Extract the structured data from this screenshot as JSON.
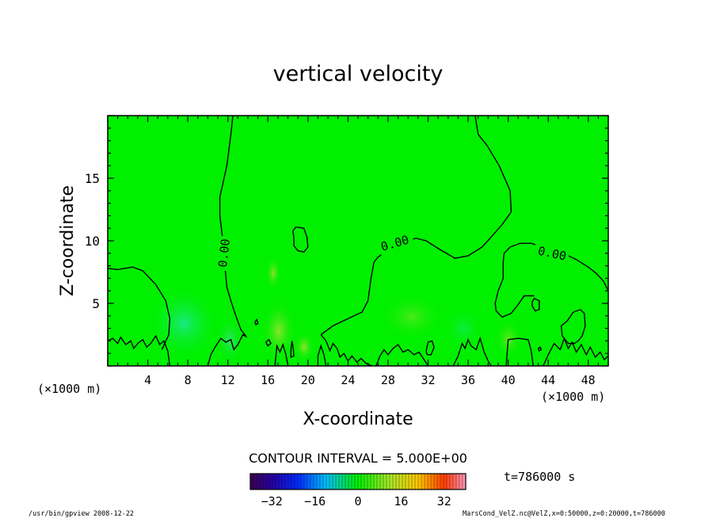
{
  "chart_data": {
    "type": "heatmap",
    "title": "vertical velocity",
    "xlabel": "X-coordinate",
    "ylabel": "Z-coordinate",
    "x_unit": "(×1000 m)",
    "xlim": [
      0,
      50
    ],
    "ylim": [
      0,
      20
    ],
    "x_ticks": [
      "4",
      "8",
      "12",
      "16",
      "20",
      "24",
      "28",
      "32",
      "36",
      "40",
      "44",
      "48"
    ],
    "y_ticks": [
      "5",
      "10",
      "15"
    ],
    "contour_interval_text": "CONTOUR INTERVAL = 5.000E+00",
    "contour_labels": [
      "0.00",
      "0.00",
      "0.00"
    ],
    "time_label": "t=786000 s",
    "colorbar": {
      "range": [
        -40,
        40
      ],
      "ticks": [
        "−32",
        "−16",
        "0",
        "16",
        "32"
      ]
    },
    "field_color": "#00f000",
    "contours": [
      {
        "points": [
          [
            0,
            7.8
          ],
          [
            1,
            7.7
          ],
          [
            2.5,
            7.9
          ],
          [
            3.5,
            7.6
          ],
          [
            4.8,
            6.5
          ],
          [
            5.8,
            5.2
          ],
          [
            6.2,
            3.8
          ],
          [
            6.1,
            2.5
          ],
          [
            5.7,
            1.8
          ],
          [
            5.4,
            1.3
          ]
        ]
      },
      {
        "points": [
          [
            12.5,
            20
          ],
          [
            12.3,
            18.5
          ],
          [
            11.9,
            16
          ],
          [
            11.2,
            13.5
          ],
          [
            11.2,
            12
          ],
          [
            11.5,
            10
          ],
          [
            11.7,
            8
          ],
          [
            11.9,
            6.3
          ],
          [
            12.3,
            5.2
          ],
          [
            12.8,
            4.0
          ],
          [
            13.3,
            2.9
          ],
          [
            13.8,
            2.4
          ]
        ]
      },
      {
        "points": [
          [
            18.6,
            10.2
          ],
          [
            18.5,
            10.8
          ],
          [
            18.8,
            11.1
          ],
          [
            19.6,
            11.0
          ],
          [
            19.9,
            10.3
          ],
          [
            20.0,
            9.5
          ],
          [
            19.6,
            9.1
          ],
          [
            19.0,
            9.2
          ],
          [
            18.6,
            9.6
          ],
          [
            18.6,
            10.2
          ]
        ]
      },
      {
        "points": [
          [
            21.3,
            2.5
          ],
          [
            22.5,
            3.2
          ],
          [
            24.6,
            4.0
          ],
          [
            25.4,
            4.3
          ],
          [
            26.0,
            5.2
          ],
          [
            26.3,
            7.0
          ],
          [
            26.6,
            8.3
          ],
          [
            27.0,
            8.7
          ],
          [
            28.5,
            9.5
          ],
          [
            29.8,
            10.0
          ],
          [
            30.8,
            10.2
          ],
          [
            31.8,
            10.0
          ],
          [
            33.2,
            9.3
          ],
          [
            34.7,
            8.6
          ],
          [
            36.0,
            8.8
          ],
          [
            37.4,
            9.5
          ],
          [
            38.3,
            10.3
          ],
          [
            39.4,
            11.3
          ],
          [
            40.3,
            12.3
          ],
          [
            40.2,
            14
          ],
          [
            39.1,
            16
          ],
          [
            37.9,
            17.6
          ],
          [
            37.0,
            18.5
          ],
          [
            36.7,
            20
          ]
        ]
      },
      {
        "points": [
          [
            39.5,
            8.3
          ],
          [
            39.6,
            9.0
          ],
          [
            40.2,
            9.5
          ],
          [
            41.2,
            9.8
          ],
          [
            42.3,
            9.8
          ],
          [
            43.8,
            9.4
          ],
          [
            45.5,
            9.0
          ],
          [
            46.8,
            8.5
          ],
          [
            48.0,
            7.9
          ],
          [
            48.8,
            7.4
          ],
          [
            49.5,
            6.8
          ],
          [
            50,
            6.0
          ]
        ]
      },
      {
        "points": [
          [
            39.5,
            8.3
          ],
          [
            39.5,
            7.0
          ],
          [
            39.0,
            6.0
          ],
          [
            38.7,
            5.0
          ],
          [
            38.8,
            4.4
          ],
          [
            39.4,
            3.9
          ],
          [
            40.3,
            4.2
          ],
          [
            41.0,
            4.9
          ],
          [
            41.6,
            5.6
          ],
          [
            42.6,
            5.6
          ]
        ]
      },
      {
        "points": [
          [
            42.4,
            5.1
          ],
          [
            42.6,
            5.4
          ],
          [
            43.1,
            5.2
          ],
          [
            43.1,
            4.5
          ],
          [
            42.7,
            4.4
          ],
          [
            42.4,
            4.8
          ],
          [
            42.4,
            5.1
          ]
        ]
      },
      {
        "points": [
          [
            46.5,
            4.3
          ],
          [
            47.2,
            4.5
          ],
          [
            47.6,
            4.2
          ],
          [
            47.7,
            3.2
          ],
          [
            47.4,
            2.4
          ],
          [
            47.0,
            2.0
          ],
          [
            46.6,
            1.8
          ],
          [
            46.0,
            1.8
          ],
          [
            45.4,
            2.4
          ],
          [
            45.3,
            3.2
          ],
          [
            45.9,
            3.6
          ],
          [
            46.5,
            4.3
          ]
        ]
      },
      {
        "points": [
          [
            18.3,
            1.3
          ],
          [
            18.4,
            2.0
          ],
          [
            18.5,
            1.6
          ],
          [
            18.6,
            0.8
          ],
          [
            18.3,
            0.7
          ],
          [
            18.3,
            1.3
          ]
        ]
      },
      {
        "points": [
          [
            15.8,
            1.9
          ],
          [
            16.1,
            2.1
          ],
          [
            16.3,
            1.8
          ],
          [
            16.0,
            1.6
          ],
          [
            15.8,
            1.9
          ]
        ]
      },
      {
        "points": [
          [
            14.7,
            3.5
          ],
          [
            14.9,
            3.7
          ],
          [
            15.0,
            3.4
          ],
          [
            14.8,
            3.3
          ],
          [
            14.7,
            3.5
          ]
        ]
      },
      {
        "points": [
          [
            43.0,
            1.4
          ],
          [
            43.2,
            1.5
          ],
          [
            43.3,
            1.3
          ],
          [
            43.1,
            1.2
          ],
          [
            43.0,
            1.4
          ]
        ]
      },
      {
        "points": [
          [
            0,
            2.0
          ],
          [
            0.5,
            2.2
          ],
          [
            1.0,
            1.8
          ],
          [
            1.3,
            2.3
          ],
          [
            1.8,
            1.7
          ],
          [
            2.3,
            2.0
          ],
          [
            2.6,
            1.4
          ],
          [
            3.0,
            1.8
          ],
          [
            3.5,
            2.1
          ],
          [
            3.9,
            1.5
          ],
          [
            4.3,
            1.8
          ],
          [
            4.8,
            2.4
          ],
          [
            5.2,
            1.7
          ],
          [
            5.6,
            2.0
          ],
          [
            6.0,
            1.2
          ],
          [
            6.2,
            0
          ]
        ]
      },
      {
        "points": [
          [
            10.0,
            0
          ],
          [
            10.3,
            0.9
          ],
          [
            10.8,
            1.6
          ],
          [
            11.3,
            2.2
          ],
          [
            11.8,
            1.9
          ],
          [
            12.3,
            2.1
          ],
          [
            12.6,
            1.3
          ],
          [
            13.0,
            1.7
          ],
          [
            13.5,
            2.5
          ],
          [
            13.9,
            2.3
          ]
        ]
      },
      {
        "points": [
          [
            16.7,
            0
          ],
          [
            16.9,
            1.6
          ],
          [
            17.2,
            1.1
          ],
          [
            17.5,
            1.7
          ],
          [
            17.8,
            0.9
          ],
          [
            18.0,
            0
          ]
        ]
      },
      {
        "points": [
          [
            21.3,
            2.5
          ],
          [
            21.8,
            2.0
          ],
          [
            22.2,
            1.2
          ],
          [
            22.5,
            1.8
          ],
          [
            22.9,
            1.4
          ],
          [
            23.2,
            0.7
          ],
          [
            23.6,
            1.0
          ],
          [
            24.0,
            0.4
          ],
          [
            24.4,
            0.8
          ],
          [
            24.9,
            0.3
          ],
          [
            25.3,
            0.6
          ],
          [
            25.8,
            0.2
          ],
          [
            26.4,
            0
          ]
        ]
      },
      {
        "points": [
          [
            26.8,
            0
          ],
          [
            27.2,
            0.8
          ],
          [
            27.6,
            1.3
          ],
          [
            28.0,
            0.9
          ],
          [
            28.5,
            1.4
          ],
          [
            29.0,
            1.7
          ],
          [
            29.5,
            1.1
          ],
          [
            30.0,
            1.3
          ],
          [
            30.6,
            0.9
          ],
          [
            31.1,
            1.1
          ],
          [
            31.6,
            0.5
          ],
          [
            32.0,
            0
          ]
        ]
      },
      {
        "points": [
          [
            31.8,
            1.2
          ],
          [
            32.0,
            1.9
          ],
          [
            32.4,
            2.0
          ],
          [
            32.6,
            1.5
          ],
          [
            32.3,
            0.9
          ],
          [
            31.9,
            0.9
          ],
          [
            31.8,
            1.2
          ]
        ]
      },
      {
        "points": [
          [
            34.5,
            0
          ],
          [
            35.0,
            0.8
          ],
          [
            35.4,
            1.8
          ],
          [
            35.7,
            1.4
          ],
          [
            36.0,
            2.1
          ],
          [
            36.3,
            1.6
          ],
          [
            36.8,
            1.3
          ],
          [
            37.2,
            2.2
          ],
          [
            37.6,
            1.1
          ],
          [
            38.0,
            0.4
          ],
          [
            38.3,
            0
          ]
        ]
      },
      {
        "points": [
          [
            39.8,
            0
          ],
          [
            40.0,
            2.1
          ],
          [
            41.0,
            2.2
          ],
          [
            42.0,
            2.1
          ],
          [
            42.3,
            1.2
          ],
          [
            42.5,
            0
          ]
        ]
      },
      {
        "points": [
          [
            43.5,
            0
          ],
          [
            44.0,
            0.9
          ],
          [
            44.6,
            1.8
          ],
          [
            45.2,
            1.3
          ],
          [
            45.6,
            2.2
          ],
          [
            46.0,
            1.4
          ],
          [
            46.4,
            1.9
          ],
          [
            46.8,
            1.1
          ],
          [
            47.3,
            1.7
          ],
          [
            47.8,
            0.9
          ],
          [
            48.2,
            1.5
          ],
          [
            48.7,
            0.7
          ],
          [
            49.2,
            1.1
          ],
          [
            49.6,
            0.5
          ],
          [
            50,
            0.8
          ]
        ]
      },
      {
        "points": [
          [
            21.0,
            0
          ],
          [
            21.0,
            0.8
          ],
          [
            21.3,
            1.6
          ],
          [
            21.6,
            0.9
          ],
          [
            21.8,
            0
          ]
        ]
      }
    ]
  },
  "footer": {
    "left": "/usr/bin/gpview  2008-12-22",
    "right": "MarsCond_VelZ.nc@VelZ,x=0:50000,z=0:20000,t=786000"
  }
}
